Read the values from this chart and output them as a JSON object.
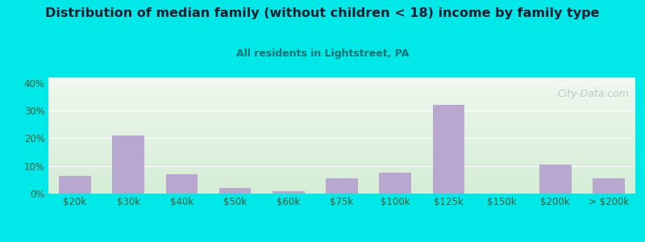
{
  "title": "Distribution of median family (without children < 18) income by family type",
  "subtitle": "All residents in Lightstreet, PA",
  "categories": [
    "$20k",
    "$30k",
    "$40k",
    "$50k",
    "$60k",
    "$75k",
    "$100k",
    "$125k",
    "$150k",
    "$200k",
    "> $200k"
  ],
  "values": [
    6.5,
    21.0,
    7.0,
    2.0,
    1.0,
    5.5,
    7.5,
    32.0,
    0.0,
    10.5,
    5.5
  ],
  "bar_color": "#b8a8d0",
  "background_color": "#00e8e8",
  "chart_bg_top": "#eef8ee",
  "chart_bg_bottom": "#d4ecd4",
  "title_color": "#1a1a2e",
  "subtitle_color": "#007070",
  "tick_color": "#3a5a3a",
  "ylim": [
    0,
    42
  ],
  "yticks": [
    0,
    10,
    20,
    30,
    40
  ],
  "ytick_labels": [
    "0%",
    "10%",
    "20%",
    "30%",
    "40%"
  ]
}
